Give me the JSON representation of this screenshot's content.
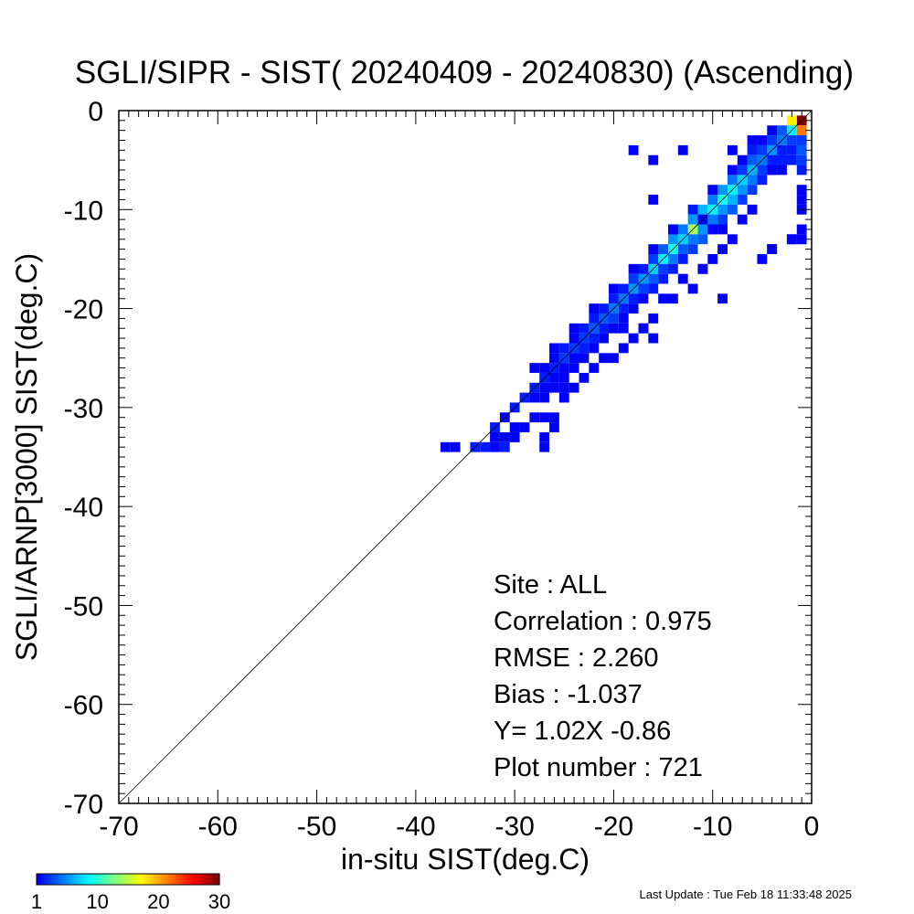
{
  "chart_data": {
    "type": "heatmap",
    "title": "SGLI/SIPR - SIST( 20240409 - 20240830) (Ascending)",
    "xlabel": "in-situ SIST(deg.C)",
    "ylabel": "SGLI/ARNP[3000]    SIST(deg.C)",
    "xlim": [
      -70,
      0
    ],
    "ylim": [
      -70,
      0
    ],
    "x_ticks": [
      "-70",
      "-60",
      "-50",
      "-40",
      "-30",
      "-20",
      "-10",
      "0"
    ],
    "y_ticks": [
      "0",
      "-10",
      "-20",
      "-30",
      "-40",
      "-50",
      "-60",
      "-70"
    ],
    "bin_size": 1,
    "reference_line": "1:1",
    "colorbar": {
      "ticks": [
        "1",
        "10",
        "20",
        "30"
      ],
      "min": 1,
      "max": 30
    },
    "stats": {
      "site": "Site : ALL",
      "correlation": "Correlation :    0.975",
      "rmse": "RMSE :    2.260",
      "bias": "Bias :   -1.037",
      "regression": "Y=   1.02X  -0.86",
      "plot_number": "Plot number :       721"
    },
    "cells": [
      [
        -1,
        -1,
        30
      ],
      [
        -1,
        -2,
        22
      ],
      [
        -2,
        -1,
        18
      ],
      [
        -2,
        -2,
        9
      ],
      [
        -3,
        -3,
        5
      ],
      [
        -1,
        -3,
        6
      ],
      [
        -3,
        -2,
        4
      ],
      [
        -4,
        -4,
        6
      ],
      [
        -5,
        -5,
        5
      ],
      [
        -6,
        -6,
        7
      ],
      [
        -7,
        -7,
        8
      ],
      [
        -8,
        -8,
        9
      ],
      [
        -9,
        -9,
        10
      ],
      [
        -10,
        -10,
        9
      ],
      [
        -11,
        -11,
        11
      ],
      [
        -12,
        -12,
        15
      ],
      [
        -13,
        -13,
        8
      ],
      [
        -14,
        -14,
        10
      ],
      [
        -15,
        -15,
        9
      ],
      [
        -16,
        -16,
        8
      ],
      [
        -17,
        -17,
        6
      ],
      [
        -18,
        -18,
        6
      ],
      [
        -19,
        -19,
        5
      ],
      [
        -20,
        -20,
        5
      ],
      [
        -21,
        -21,
        4
      ],
      [
        -22,
        -22,
        4
      ],
      [
        -23,
        -23,
        3
      ],
      [
        -24,
        -24,
        3
      ],
      [
        -25,
        -25,
        3
      ],
      [
        -26,
        -26,
        2
      ],
      [
        -27,
        -27,
        2
      ],
      [
        -28,
        -28,
        2
      ],
      [
        -29,
        -29,
        2
      ],
      [
        -30,
        -30,
        2
      ],
      [
        -31,
        -31,
        1
      ],
      [
        -32,
        -32,
        2
      ],
      [
        -4,
        -3,
        3
      ],
      [
        -3,
        -4,
        2
      ],
      [
        -5,
        -4,
        3
      ],
      [
        -6,
        -5,
        4
      ],
      [
        -7,
        -6,
        3
      ],
      [
        -8,
        -7,
        5
      ],
      [
        -9,
        -8,
        6
      ],
      [
        -10,
        -9,
        5
      ],
      [
        -11,
        -10,
        7
      ],
      [
        -12,
        -11,
        6
      ],
      [
        -13,
        -12,
        5
      ],
      [
        -14,
        -13,
        6
      ],
      [
        -15,
        -14,
        4
      ],
      [
        -16,
        -15,
        3
      ],
      [
        -17,
        -16,
        2
      ],
      [
        -18,
        -17,
        3
      ],
      [
        -19,
        -18,
        2
      ],
      [
        -20,
        -19,
        2
      ],
      [
        -21,
        -20,
        2
      ],
      [
        -22,
        -21,
        2
      ],
      [
        -23,
        -22,
        2
      ],
      [
        -24,
        -23,
        1
      ],
      [
        -25,
        -24,
        2
      ],
      [
        -26,
        -25,
        1
      ],
      [
        -27,
        -26,
        1
      ],
      [
        -4,
        -5,
        4
      ],
      [
        -5,
        -6,
        3
      ],
      [
        -6,
        -7,
        5
      ],
      [
        -7,
        -8,
        6
      ],
      [
        -8,
        -9,
        7
      ],
      [
        -9,
        -10,
        6
      ],
      [
        -10,
        -11,
        5
      ],
      [
        -11,
        -12,
        6
      ],
      [
        -12,
        -13,
        5
      ],
      [
        -13,
        -14,
        4
      ],
      [
        -14,
        -15,
        5
      ],
      [
        -15,
        -16,
        3
      ],
      [
        -16,
        -17,
        4
      ],
      [
        -17,
        -18,
        3
      ],
      [
        -18,
        -19,
        2
      ],
      [
        -19,
        -20,
        2
      ],
      [
        -20,
        -21,
        3
      ],
      [
        -21,
        -22,
        2
      ],
      [
        -22,
        -23,
        2
      ],
      [
        -23,
        -24,
        2
      ],
      [
        -24,
        -25,
        1
      ],
      [
        -25,
        -26,
        1
      ],
      [
        -26,
        -27,
        1
      ],
      [
        -27,
        -28,
        1
      ],
      [
        -28,
        -29,
        1
      ],
      [
        -3,
        -5,
        2
      ],
      [
        -4,
        -6,
        2
      ],
      [
        -5,
        -7,
        2
      ],
      [
        -6,
        -8,
        3
      ],
      [
        -7,
        -9,
        3
      ],
      [
        -8,
        -10,
        4
      ],
      [
        -9,
        -11,
        3
      ],
      [
        -10,
        -12,
        3
      ],
      [
        -11,
        -13,
        4
      ],
      [
        -12,
        -14,
        3
      ],
      [
        -13,
        -15,
        2
      ],
      [
        -14,
        -16,
        2
      ],
      [
        -15,
        -17,
        2
      ],
      [
        -16,
        -18,
        2
      ],
      [
        -17,
        -19,
        1
      ],
      [
        -18,
        -20,
        1
      ],
      [
        -19,
        -21,
        1
      ],
      [
        -20,
        -22,
        1
      ],
      [
        -21,
        -23,
        1
      ],
      [
        -22,
        -24,
        1
      ],
      [
        -23,
        -25,
        1
      ],
      [
        -24,
        -26,
        1
      ],
      [
        -25,
        -27,
        1
      ],
      [
        -26,
        -28,
        1
      ],
      [
        -27,
        -29,
        1
      ],
      [
        -5,
        -3,
        1
      ],
      [
        -6,
        -4,
        2
      ],
      [
        -7,
        -5,
        1
      ],
      [
        -8,
        -6,
        1
      ],
      [
        -10,
        -8,
        1
      ],
      [
        -12,
        -10,
        2
      ],
      [
        -14,
        -12,
        1
      ],
      [
        -16,
        -14,
        1
      ],
      [
        -18,
        -16,
        1
      ],
      [
        -20,
        -18,
        1
      ],
      [
        -22,
        -20,
        1
      ],
      [
        -24,
        -22,
        1
      ],
      [
        -26,
        -24,
        1
      ],
      [
        -28,
        -26,
        1
      ],
      [
        -1,
        -3,
        3
      ],
      [
        -1,
        -4,
        4
      ],
      [
        -1,
        -5,
        3
      ],
      [
        -1,
        -6,
        2
      ],
      [
        -2,
        -3,
        3
      ],
      [
        -2,
        -4,
        2
      ],
      [
        -2,
        -5,
        2
      ],
      [
        -3,
        -5,
        2
      ],
      [
        -3,
        -6,
        1
      ],
      [
        -4,
        -5,
        2
      ],
      [
        -4,
        -6,
        1
      ],
      [
        -1,
        -8,
        1
      ],
      [
        -1,
        -10,
        1
      ],
      [
        -1,
        -12,
        1
      ],
      [
        -1,
        -13,
        1
      ],
      [
        -2,
        -13,
        1
      ],
      [
        -4,
        -14,
        1
      ],
      [
        -5,
        -15,
        1
      ],
      [
        -7,
        -11,
        1
      ],
      [
        -8,
        -13,
        1
      ],
      [
        -9,
        -12,
        1
      ],
      [
        -9,
        -14,
        1
      ],
      [
        -10,
        -15,
        1
      ],
      [
        -11,
        -16,
        1
      ],
      [
        -13,
        -17,
        1
      ],
      [
        -15,
        -19,
        1
      ],
      [
        -16,
        -21,
        1
      ],
      [
        -17,
        -22,
        1
      ],
      [
        -18,
        -23,
        1
      ],
      [
        -19,
        -24,
        1
      ],
      [
        -20,
        -25,
        1
      ],
      [
        -21,
        -25,
        1
      ],
      [
        -22,
        -26,
        1
      ],
      [
        -23,
        -27,
        1
      ],
      [
        -24,
        -28,
        1
      ],
      [
        -25,
        -29,
        1
      ],
      [
        -26,
        -31,
        1
      ],
      [
        -27,
        -31,
        1
      ],
      [
        -28,
        -31,
        1
      ],
      [
        -29,
        -32,
        1
      ],
      [
        -30,
        -32,
        1
      ],
      [
        -31,
        -33,
        1
      ],
      [
        -32,
        -34,
        1
      ],
      [
        -30,
        -33,
        1
      ],
      [
        -31,
        -34,
        2
      ],
      [
        -32,
        -33,
        1
      ],
      [
        -33,
        -34,
        2
      ],
      [
        -34,
        -34,
        2
      ],
      [
        -37,
        -34,
        1
      ],
      [
        -36,
        -34,
        1
      ],
      [
        -27,
        -34,
        1
      ],
      [
        -27,
        -33,
        1
      ],
      [
        -26,
        -32,
        1
      ],
      [
        -18,
        -4,
        1
      ],
      [
        -16,
        -5,
        1
      ],
      [
        -13,
        -4,
        1
      ],
      [
        -8,
        -4,
        1
      ],
      [
        -6,
        -3,
        1
      ],
      [
        -4,
        -2,
        1
      ],
      [
        -16,
        -9,
        1
      ],
      [
        -14,
        -12,
        1
      ],
      [
        -11,
        -11,
        1
      ],
      [
        -10,
        -12,
        1
      ],
      [
        -6,
        -10,
        1
      ],
      [
        -4,
        -14,
        1
      ],
      [
        -2,
        -13,
        1
      ],
      [
        -1,
        -9,
        1
      ],
      [
        -14,
        -19,
        1
      ],
      [
        -12,
        -18,
        1
      ],
      [
        -9,
        -19,
        1
      ],
      [
        -11,
        -16,
        1
      ],
      [
        -17,
        -22,
        1
      ],
      [
        -16,
        -23,
        1
      ],
      [
        -19,
        -22,
        1
      ],
      [
        -25,
        -28,
        1
      ],
      [
        -30,
        -33,
        1
      ]
    ]
  },
  "footer": {
    "last_update": "Last Update : Tue Feb 18 11:33:48 2025"
  }
}
